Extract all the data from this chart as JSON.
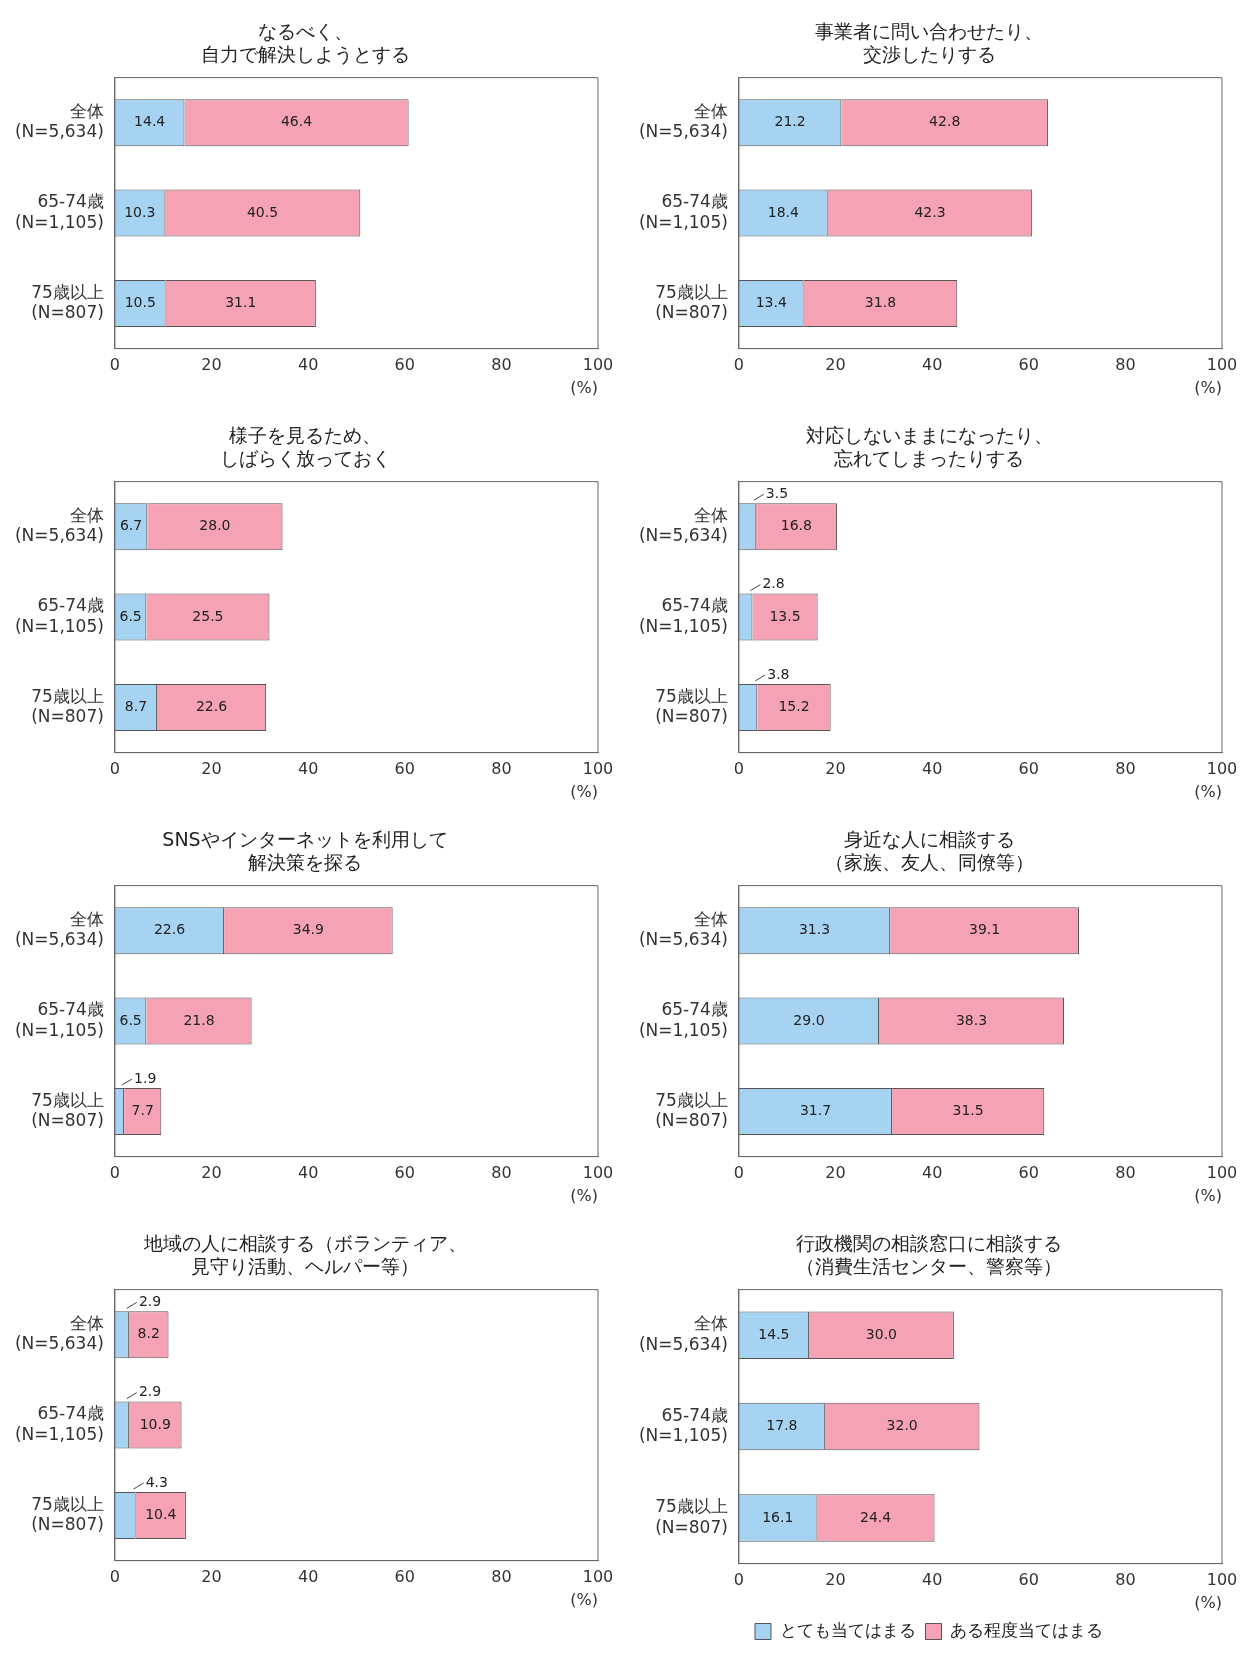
{
  "chart_data": [
    {
      "type": "bar",
      "orientation": "horizontal",
      "stacked": true,
      "title": "なるべく、自力で解決しようとする",
      "xlabel": "(%)",
      "categories": [
        "全体\n(N=5,634)",
        "65-74歳\n(N=1,105)",
        "75歳以上\n(N=807)"
      ],
      "xlim": [
        0,
        100
      ],
      "xticks": [
        0,
        20,
        40,
        60,
        80,
        100
      ],
      "grid": false,
      "legend": false,
      "data_labels": true,
      "series": [
        {
          "color": "#a6d3f2",
          "values": [
            14.4,
            10.3,
            10.5
          ],
          "value_labels": [
            "14.4",
            "10.3",
            "10.5"
          ]
        },
        {
          "color": "#f5a3b4",
          "values": [
            46.4,
            40.5,
            31.1
          ],
          "value_labels": [
            "46.4",
            "40.5",
            "31.1"
          ]
        }
      ]
    },
    {
      "type": "bar",
      "orientation": "horizontal",
      "stacked": true,
      "title": "事業者に問い合わせたり、交渉したりする",
      "xlabel": "(%)",
      "categories": [
        "全体\n(N=5,634)",
        "65-74歳\n(N=1,105)",
        "75歳以上\n(N=807)"
      ],
      "xlim": [
        0,
        100
      ],
      "xticks": [
        0,
        20,
        40,
        60,
        80,
        100
      ],
      "grid": false,
      "legend": false,
      "data_labels": true,
      "series": [
        {
          "color": "#a6d3f2",
          "values": [
            21.2,
            18.4,
            13.4
          ],
          "value_labels": [
            "21.2",
            "18.4",
            "13.4"
          ]
        },
        {
          "color": "#f5a3b4",
          "values": [
            42.8,
            42.3,
            31.8
          ],
          "value_labels": [
            "42.8",
            "42.3",
            "31.8"
          ]
        }
      ]
    },
    {
      "type": "bar",
      "orientation": "horizontal",
      "stacked": true,
      "title": "様子を見るため、しばらく放っておく",
      "xlabel": "(%)",
      "categories": [
        "全体\n(N=5,634)",
        "65-74歳\n(N=1,105)",
        "75歳以上\n(N=807)"
      ],
      "xlim": [
        0,
        100
      ],
      "xticks": [
        0,
        20,
        40,
        60,
        80,
        100
      ],
      "grid": false,
      "legend": false,
      "data_labels": true,
      "series": [
        {
          "color": "#a6d3f2",
          "values": [
            6.7,
            6.5,
            8.7
          ],
          "value_labels": [
            "6.7",
            "6.5",
            "8.7"
          ]
        },
        {
          "color": "#f5a3b4",
          "values": [
            28.0,
            25.5,
            22.6
          ],
          "value_labels": [
            "28.0",
            "25.5",
            "22.6"
          ]
        }
      ]
    },
    {
      "type": "bar",
      "orientation": "horizontal",
      "stacked": true,
      "title": "対応しないままになったり、忘れてしまったりする",
      "xlabel": "(%)",
      "categories": [
        "全体\n(N=5,634)",
        "65-74歳\n(N=1,105)",
        "75歳以上\n(N=807)"
      ],
      "xlim": [
        0,
        100
      ],
      "xticks": [
        0,
        20,
        40,
        60,
        80,
        100
      ],
      "grid": false,
      "legend": false,
      "data_labels": true,
      "series": [
        {
          "color": "#a6d3f2",
          "values": [
            3.5,
            2.8,
            3.8
          ],
          "value_labels": [
            "3.5",
            "2.8",
            "3.8"
          ]
        },
        {
          "color": "#f5a3b4",
          "values": [
            16.8,
            13.5,
            15.2
          ],
          "value_labels": [
            "16.8",
            "13.5",
            "15.2"
          ]
        }
      ]
    },
    {
      "type": "bar",
      "orientation": "horizontal",
      "stacked": true,
      "title": "SNSやインターネットを利用して解決策を探る",
      "xlabel": "(%)",
      "categories": [
        "全体\n(N=5,634)",
        "65-74歳\n(N=1,105)",
        "75歳以上\n(N=807)"
      ],
      "xlim": [
        0,
        100
      ],
      "xticks": [
        0,
        20,
        40,
        60,
        80,
        100
      ],
      "grid": false,
      "legend": false,
      "data_labels": true,
      "series": [
        {
          "color": "#a6d3f2",
          "values": [
            22.6,
            6.5,
            1.9
          ],
          "value_labels": [
            "22.6",
            "6.5",
            "1.9"
          ]
        },
        {
          "color": "#f5a3b4",
          "values": [
            34.9,
            21.8,
            7.7
          ],
          "value_labels": [
            "34.9",
            "21.8",
            "7.7"
          ]
        }
      ]
    },
    {
      "type": "bar",
      "orientation": "horizontal",
      "stacked": true,
      "title": "身近な人に相談する（家族、友人、同僚等）",
      "xlabel": "(%)",
      "categories": [
        "全体\n(N=5,634)",
        "65-74歳\n(N=1,105)",
        "75歳以上\n(N=807)"
      ],
      "xlim": [
        0,
        100
      ],
      "xticks": [
        0,
        20,
        40,
        60,
        80,
        100
      ],
      "grid": false,
      "legend": false,
      "data_labels": true,
      "series": [
        {
          "color": "#a6d3f2",
          "values": [
            31.3,
            29.0,
            31.7
          ],
          "value_labels": [
            "31.3",
            "29.0",
            "31.7"
          ]
        },
        {
          "color": "#f5a3b4",
          "values": [
            39.1,
            38.3,
            31.5
          ],
          "value_labels": [
            "39.1",
            "38.3",
            "31.5"
          ]
        }
      ]
    },
    {
      "type": "bar",
      "orientation": "horizontal",
      "stacked": true,
      "title": "地域の人に相談する（ボランティア、見守り活動、ヘルパー等）",
      "xlabel": "(%)",
      "categories": [
        "全体\n(N=5,634)",
        "65-74歳\n(N=1,105)",
        "75歳以上\n(N=807)"
      ],
      "xlim": [
        0,
        100
      ],
      "xticks": [
        0,
        20,
        40,
        60,
        80,
        100
      ],
      "grid": false,
      "legend": false,
      "data_labels": true,
      "series": [
        {
          "color": "#a6d3f2",
          "values": [
            2.9,
            2.9,
            4.3
          ],
          "value_labels": [
            "2.9",
            "2.9",
            "4.3"
          ]
        },
        {
          "color": "#f5a3b4",
          "values": [
            8.2,
            10.9,
            10.4
          ],
          "value_labels": [
            "8.2",
            "10.9",
            "10.4"
          ]
        }
      ]
    },
    {
      "type": "bar",
      "orientation": "horizontal",
      "stacked": true,
      "title": "行政機関の相談窓口に相談する（消費生活センター、警察等）",
      "xlabel": "(%)",
      "categories": [
        "全体\n(N=5,634)",
        "65-74歳\n(N=1,105)",
        "75歳以上\n(N=807)"
      ],
      "xlim": [
        0,
        100
      ],
      "xticks": [
        0,
        20,
        40,
        60,
        80,
        100
      ],
      "grid": false,
      "legend": "bottom",
      "data_labels": true,
      "series": [
        {
          "name": "とても当てはまる",
          "color": "#a6d3f2",
          "values": [
            14.5,
            17.8,
            16.1
          ],
          "value_labels": [
            "14.5",
            "17.8",
            "16.1"
          ]
        },
        {
          "name": "ある程度当てはまる",
          "color": "#f5a3b4",
          "values": [
            30.0,
            32.0,
            24.4
          ],
          "value_labels": [
            "30.0",
            "32.0",
            "24.4"
          ]
        }
      ]
    }
  ]
}
